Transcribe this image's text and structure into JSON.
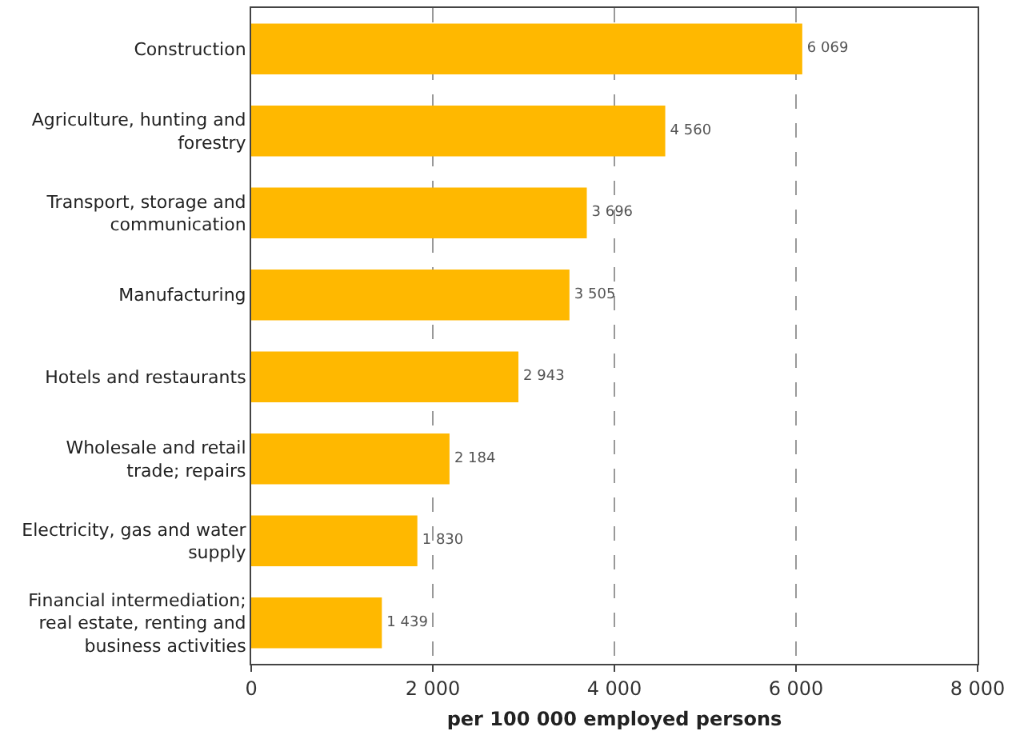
{
  "chart_data": {
    "type": "bar",
    "orientation": "horizontal",
    "categories": [
      "Construction",
      "Agriculture, hunting and forestry",
      "Transport, storage and communication",
      "Manufacturing",
      "Hotels and restaurants",
      "Wholesale and retail trade; repairs",
      "Electricity, gas and water supply",
      "Financial intermediation; real estate, renting and business activities"
    ],
    "values": [
      6069,
      4560,
      3696,
      3505,
      2943,
      2184,
      1830,
      1439
    ],
    "value_labels": [
      "6 069",
      "4 560",
      "3 696",
      "3 505",
      "2 943",
      "2 184",
      "1 830",
      "1 439"
    ],
    "color": "#ffb800",
    "xlabel": "per 100 000 employed persons",
    "xlim": [
      0,
      8000
    ],
    "xticks": [
      0,
      {
        "value": 2000,
        "label": "2 000"
      },
      {
        "value": 4000,
        "label": "4 000"
      },
      {
        "value": 6000,
        "label": "6 000"
      },
      {
        "value": 8000,
        "label": "8 000"
      }
    ],
    "grid": "x"
  }
}
